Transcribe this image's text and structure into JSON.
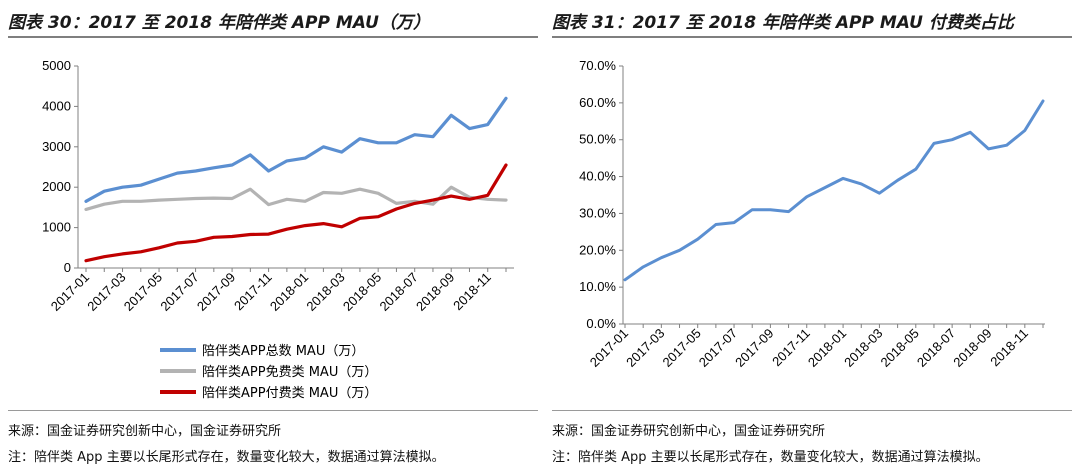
{
  "left": {
    "title": "图表 30：2017 至 2018 年陪伴类 APP MAU（万）",
    "source": "来源：国金证券研究创新中心，国金证券研究所",
    "note": "注：陪伴类 App 主要以长尾形式存在，数量变化较大，数据通过算法模拟。"
  },
  "right": {
    "title": "图表 31：2017 至 2018 年陪伴类 APP MAU 付费类占比",
    "source": "来源：国金证券研究创新中心，国金证券研究所",
    "note": "注：陪伴类 App 主要以长尾形式存在，数量变化较大，数据通过算法模拟。"
  },
  "chart_data": [
    {
      "type": "line",
      "title": "图表 30：2017 至 2018 年陪伴类 APP MAU（万）",
      "x": [
        "2017-01",
        "2017-02",
        "2017-03",
        "2017-04",
        "2017-05",
        "2017-06",
        "2017-07",
        "2017-08",
        "2017-09",
        "2017-10",
        "2017-11",
        "2017-12",
        "2018-01",
        "2018-02",
        "2018-03",
        "2018-04",
        "2018-05",
        "2018-06",
        "2018-07",
        "2018-08",
        "2018-09",
        "2018-10",
        "2018-11",
        "2018-12"
      ],
      "tick_labels": [
        "2017-01",
        "2017-03",
        "2017-05",
        "2017-07",
        "2017-09",
        "2017-11",
        "2018-01",
        "2018-03",
        "2018-05",
        "2018-07",
        "2018-09",
        "2018-11"
      ],
      "ylim": [
        0,
        5000
      ],
      "yticks": [
        "0",
        "1000",
        "2000",
        "3000",
        "4000",
        "5000"
      ],
      "series": [
        {
          "name": "陪伴类APP总数 MAU（万）",
          "color": "#5b8fd1",
          "values": [
            1650,
            1900,
            2000,
            2050,
            2200,
            2350,
            2400,
            2480,
            2550,
            2800,
            2400,
            2650,
            2720,
            3000,
            2870,
            3200,
            3100,
            3100,
            3300,
            3250,
            3780,
            3450,
            3550,
            4200
          ]
        },
        {
          "name": "陪伴类APP免费类 MAU（万）",
          "color": "#b3b3b3",
          "values": [
            1450,
            1580,
            1650,
            1650,
            1680,
            1700,
            1720,
            1730,
            1720,
            1950,
            1570,
            1700,
            1650,
            1870,
            1850,
            1950,
            1850,
            1600,
            1650,
            1580,
            2000,
            1750,
            1700,
            1680
          ]
        },
        {
          "name": "陪伴类APP付费类 MAU（万）",
          "color": "#c00000",
          "values": [
            180,
            280,
            350,
            400,
            500,
            620,
            660,
            760,
            780,
            830,
            840,
            960,
            1050,
            1100,
            1020,
            1230,
            1270,
            1460,
            1600,
            1680,
            1780,
            1700,
            1800,
            2550
          ]
        }
      ]
    },
    {
      "type": "line",
      "title": "图表 31：2017 至 2018 年陪伴类 APP MAU 付费类占比",
      "x": [
        "2017-01",
        "2017-02",
        "2017-03",
        "2017-04",
        "2017-05",
        "2017-06",
        "2017-07",
        "2017-08",
        "2017-09",
        "2017-10",
        "2017-11",
        "2017-12",
        "2018-01",
        "2018-02",
        "2018-03",
        "2018-04",
        "2018-05",
        "2018-06",
        "2018-07",
        "2018-08",
        "2018-09",
        "2018-10",
        "2018-11",
        "2018-12"
      ],
      "tick_labels": [
        "2017-01",
        "2017-03",
        "2017-05",
        "2017-07",
        "2017-09",
        "2017-11",
        "2018-01",
        "2018-03",
        "2018-05",
        "2018-07",
        "2018-09",
        "2018-11"
      ],
      "ylim": [
        0,
        70
      ],
      "yticks": [
        "0.0%",
        "10.0%",
        "20.0%",
        "30.0%",
        "40.0%",
        "50.0%",
        "60.0%",
        "70.0%"
      ],
      "series": [
        {
          "name": "付费类占比",
          "color": "#5b8fd1",
          "values": [
            12,
            15.5,
            18,
            20,
            23,
            27,
            27.5,
            31,
            31,
            30.5,
            34.5,
            37,
            39.5,
            38,
            35.5,
            39,
            42,
            49,
            50,
            52,
            47.5,
            48.5,
            52.5,
            60.5
          ]
        }
      ]
    }
  ]
}
